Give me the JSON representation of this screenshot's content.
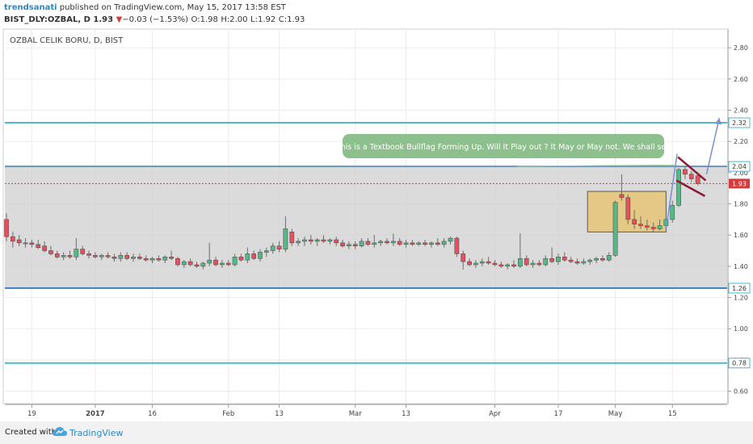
{
  "header": {
    "author": "trendsanati",
    "published": "published on TradingView.com, May 15, 2017 13:58 EST",
    "symbol": "BIST_DLY:OZBAL, D",
    "last": "1.93",
    "change_arrow": "▼",
    "change": "−0.03 (−1.53%)",
    "o_label": "O:",
    "o_val": "1.98",
    "h_label": "H:",
    "h_val": "2.00",
    "l_label": "L:",
    "l_val": "1.92",
    "c_label": "C:",
    "c_val": "1.93"
  },
  "chart_title": "OZBAL CELIK BORU, D, BIST",
  "annotation": "This is a Textbook Bullflag Forming Up. Will It Play out ? It May or May not. We shall see",
  "footer": {
    "created_with": "Created with",
    "brand": "TradingView"
  },
  "colors": {
    "up_candle": "#53b987",
    "down_candle": "#eb4d5c",
    "hline": "#4fb9c7",
    "range_fill": "#cfcfcf",
    "box_fill": "#e8c06a",
    "annotation_bg": "#8dc08d",
    "flag": "#8b1a3a",
    "arrow": "#7b8fd4",
    "price_line": "#d63b3b"
  },
  "chart_data": {
    "type": "candlestick",
    "title": "OZBAL CELIK BORU, D, BIST",
    "ylim": [
      0.52,
      2.92
    ],
    "y_ticks": [
      0.6,
      0.8,
      1.0,
      1.2,
      1.4,
      1.6,
      1.8,
      2.0,
      2.2,
      2.4,
      2.6,
      2.8
    ],
    "y_tick_labels": [
      "0.60",
      "0.80",
      "1.00",
      "1.20",
      "1.40",
      "1.60",
      "1.80",
      "2.00",
      "2.20",
      "2.40",
      "2.60",
      "2.80"
    ],
    "x_ticks": [
      {
        "label": "19",
        "bar": 4
      },
      {
        "label": "2017",
        "bar": 14
      },
      {
        "label": "16",
        "bar": 23
      },
      {
        "label": "Feb",
        "bar": 35
      },
      {
        "label": "13",
        "bar": 43
      },
      {
        "label": "Mar",
        "bar": 55
      },
      {
        "label": "13",
        "bar": 63
      },
      {
        "label": "Apr",
        "bar": 77
      },
      {
        "label": "17",
        "bar": 87
      },
      {
        "label": "May",
        "bar": 96
      },
      {
        "label": "15",
        "bar": 105
      }
    ],
    "bars_total": 112,
    "horizontal_lines": [
      {
        "value": 2.32,
        "label": "2.32"
      },
      {
        "value": 2.04,
        "label": "2.04"
      },
      {
        "value": 1.26,
        "label": "1.26"
      },
      {
        "value": 0.78,
        "label": "0.78"
      }
    ],
    "last_price": {
      "value": 1.93,
      "label": "1.93"
    },
    "range_zone": [
      1.26,
      2.04
    ],
    "consolidation_box": {
      "bar_from": 92,
      "bar_to": 104,
      "low": 1.62,
      "high": 1.88
    },
    "candles": [
      {
        "o": 1.7,
        "h": 1.74,
        "l": 1.56,
        "c": 1.59
      },
      {
        "o": 1.59,
        "h": 1.62,
        "l": 1.52,
        "c": 1.56
      },
      {
        "o": 1.57,
        "h": 1.6,
        "l": 1.53,
        "c": 1.55
      },
      {
        "o": 1.55,
        "h": 1.58,
        "l": 1.52,
        "c": 1.55
      },
      {
        "o": 1.55,
        "h": 1.57,
        "l": 1.52,
        "c": 1.54
      },
      {
        "o": 1.54,
        "h": 1.57,
        "l": 1.51,
        "c": 1.52
      },
      {
        "o": 1.53,
        "h": 1.56,
        "l": 1.49,
        "c": 1.5
      },
      {
        "o": 1.5,
        "h": 1.53,
        "l": 1.47,
        "c": 1.48
      },
      {
        "o": 1.48,
        "h": 1.5,
        "l": 1.45,
        "c": 1.46
      },
      {
        "o": 1.46,
        "h": 1.49,
        "l": 1.44,
        "c": 1.47
      },
      {
        "o": 1.47,
        "h": 1.5,
        "l": 1.45,
        "c": 1.46
      },
      {
        "o": 1.46,
        "h": 1.58,
        "l": 1.44,
        "c": 1.51
      },
      {
        "o": 1.51,
        "h": 1.53,
        "l": 1.47,
        "c": 1.48
      },
      {
        "o": 1.48,
        "h": 1.5,
        "l": 1.45,
        "c": 1.47
      },
      {
        "o": 1.47,
        "h": 1.49,
        "l": 1.45,
        "c": 1.46
      },
      {
        "o": 1.46,
        "h": 1.48,
        "l": 1.44,
        "c": 1.47
      },
      {
        "o": 1.47,
        "h": 1.49,
        "l": 1.45,
        "c": 1.46
      },
      {
        "o": 1.46,
        "h": 1.48,
        "l": 1.43,
        "c": 1.45
      },
      {
        "o": 1.45,
        "h": 1.49,
        "l": 1.43,
        "c": 1.47
      },
      {
        "o": 1.47,
        "h": 1.49,
        "l": 1.44,
        "c": 1.45
      },
      {
        "o": 1.45,
        "h": 1.48,
        "l": 1.43,
        "c": 1.46
      },
      {
        "o": 1.46,
        "h": 1.48,
        "l": 1.44,
        "c": 1.45
      },
      {
        "o": 1.45,
        "h": 1.47,
        "l": 1.43,
        "c": 1.44
      },
      {
        "o": 1.44,
        "h": 1.46,
        "l": 1.42,
        "c": 1.45
      },
      {
        "o": 1.45,
        "h": 1.47,
        "l": 1.43,
        "c": 1.44
      },
      {
        "o": 1.44,
        "h": 1.47,
        "l": 1.42,
        "c": 1.46
      },
      {
        "o": 1.46,
        "h": 1.5,
        "l": 1.44,
        "c": 1.45
      },
      {
        "o": 1.45,
        "h": 1.46,
        "l": 1.4,
        "c": 1.41
      },
      {
        "o": 1.41,
        "h": 1.44,
        "l": 1.39,
        "c": 1.43
      },
      {
        "o": 1.43,
        "h": 1.45,
        "l": 1.4,
        "c": 1.41
      },
      {
        "o": 1.41,
        "h": 1.43,
        "l": 1.39,
        "c": 1.4
      },
      {
        "o": 1.4,
        "h": 1.43,
        "l": 1.38,
        "c": 1.42
      },
      {
        "o": 1.42,
        "h": 1.55,
        "l": 1.4,
        "c": 1.44
      },
      {
        "o": 1.44,
        "h": 1.46,
        "l": 1.4,
        "c": 1.41
      },
      {
        "o": 1.41,
        "h": 1.44,
        "l": 1.39,
        "c": 1.42
      },
      {
        "o": 1.42,
        "h": 1.44,
        "l": 1.4,
        "c": 1.41
      },
      {
        "o": 1.41,
        "h": 1.48,
        "l": 1.4,
        "c": 1.46
      },
      {
        "o": 1.46,
        "h": 1.48,
        "l": 1.43,
        "c": 1.44
      },
      {
        "o": 1.44,
        "h": 1.52,
        "l": 1.42,
        "c": 1.48
      },
      {
        "o": 1.48,
        "h": 1.5,
        "l": 1.44,
        "c": 1.45
      },
      {
        "o": 1.45,
        "h": 1.51,
        "l": 1.43,
        "c": 1.49
      },
      {
        "o": 1.49,
        "h": 1.52,
        "l": 1.46,
        "c": 1.5
      },
      {
        "o": 1.5,
        "h": 1.55,
        "l": 1.48,
        "c": 1.53
      },
      {
        "o": 1.53,
        "h": 1.56,
        "l": 1.49,
        "c": 1.51
      },
      {
        "o": 1.51,
        "h": 1.72,
        "l": 1.49,
        "c": 1.64
      },
      {
        "o": 1.62,
        "h": 1.64,
        "l": 1.53,
        "c": 1.55
      },
      {
        "o": 1.55,
        "h": 1.58,
        "l": 1.53,
        "c": 1.56
      },
      {
        "o": 1.56,
        "h": 1.59,
        "l": 1.53,
        "c": 1.57
      },
      {
        "o": 1.57,
        "h": 1.6,
        "l": 1.54,
        "c": 1.56
      },
      {
        "o": 1.56,
        "h": 1.58,
        "l": 1.53,
        "c": 1.57
      },
      {
        "o": 1.57,
        "h": 1.6,
        "l": 1.55,
        "c": 1.56
      },
      {
        "o": 1.56,
        "h": 1.58,
        "l": 1.54,
        "c": 1.57
      },
      {
        "o": 1.57,
        "h": 1.59,
        "l": 1.53,
        "c": 1.55
      },
      {
        "o": 1.55,
        "h": 1.57,
        "l": 1.52,
        "c": 1.53
      },
      {
        "o": 1.53,
        "h": 1.56,
        "l": 1.51,
        "c": 1.54
      },
      {
        "o": 1.54,
        "h": 1.56,
        "l": 1.51,
        "c": 1.53
      },
      {
        "o": 1.53,
        "h": 1.58,
        "l": 1.52,
        "c": 1.56
      },
      {
        "o": 1.56,
        "h": 1.58,
        "l": 1.53,
        "c": 1.54
      },
      {
        "o": 1.54,
        "h": 1.6,
        "l": 1.52,
        "c": 1.55
      },
      {
        "o": 1.55,
        "h": 1.57,
        "l": 1.53,
        "c": 1.56
      },
      {
        "o": 1.56,
        "h": 1.58,
        "l": 1.54,
        "c": 1.55
      },
      {
        "o": 1.55,
        "h": 1.61,
        "l": 1.53,
        "c": 1.56
      },
      {
        "o": 1.56,
        "h": 1.58,
        "l": 1.53,
        "c": 1.54
      },
      {
        "o": 1.54,
        "h": 1.57,
        "l": 1.52,
        "c": 1.55
      },
      {
        "o": 1.55,
        "h": 1.57,
        "l": 1.53,
        "c": 1.54
      },
      {
        "o": 1.54,
        "h": 1.56,
        "l": 1.53,
        "c": 1.55
      },
      {
        "o": 1.55,
        "h": 1.57,
        "l": 1.53,
        "c": 1.54
      },
      {
        "o": 1.54,
        "h": 1.56,
        "l": 1.52,
        "c": 1.55
      },
      {
        "o": 1.55,
        "h": 1.58,
        "l": 1.53,
        "c": 1.54
      },
      {
        "o": 1.54,
        "h": 1.58,
        "l": 1.52,
        "c": 1.56
      },
      {
        "o": 1.56,
        "h": 1.59,
        "l": 1.54,
        "c": 1.58
      },
      {
        "o": 1.58,
        "h": 1.59,
        "l": 1.46,
        "c": 1.48
      },
      {
        "o": 1.48,
        "h": 1.5,
        "l": 1.38,
        "c": 1.43
      },
      {
        "o": 1.43,
        "h": 1.45,
        "l": 1.4,
        "c": 1.41
      },
      {
        "o": 1.41,
        "h": 1.44,
        "l": 1.39,
        "c": 1.42
      },
      {
        "o": 1.42,
        "h": 1.45,
        "l": 1.4,
        "c": 1.43
      },
      {
        "o": 1.43,
        "h": 1.46,
        "l": 1.41,
        "c": 1.42
      },
      {
        "o": 1.42,
        "h": 1.44,
        "l": 1.4,
        "c": 1.41
      },
      {
        "o": 1.41,
        "h": 1.43,
        "l": 1.39,
        "c": 1.4
      },
      {
        "o": 1.4,
        "h": 1.42,
        "l": 1.38,
        "c": 1.41
      },
      {
        "o": 1.41,
        "h": 1.44,
        "l": 1.39,
        "c": 1.4
      },
      {
        "o": 1.4,
        "h": 1.61,
        "l": 1.39,
        "c": 1.45
      },
      {
        "o": 1.45,
        "h": 1.47,
        "l": 1.4,
        "c": 1.41
      },
      {
        "o": 1.41,
        "h": 1.44,
        "l": 1.39,
        "c": 1.42
      },
      {
        "o": 1.42,
        "h": 1.44,
        "l": 1.4,
        "c": 1.41
      },
      {
        "o": 1.41,
        "h": 1.47,
        "l": 1.4,
        "c": 1.45
      },
      {
        "o": 1.45,
        "h": 1.52,
        "l": 1.42,
        "c": 1.43
      },
      {
        "o": 1.43,
        "h": 1.48,
        "l": 1.41,
        "c": 1.46
      },
      {
        "o": 1.46,
        "h": 1.49,
        "l": 1.43,
        "c": 1.44
      },
      {
        "o": 1.44,
        "h": 1.46,
        "l": 1.42,
        "c": 1.43
      },
      {
        "o": 1.43,
        "h": 1.45,
        "l": 1.41,
        "c": 1.42
      },
      {
        "o": 1.42,
        "h": 1.45,
        "l": 1.41,
        "c": 1.43
      },
      {
        "o": 1.43,
        "h": 1.45,
        "l": 1.41,
        "c": 1.44
      },
      {
        "o": 1.44,
        "h": 1.46,
        "l": 1.42,
        "c": 1.45
      },
      {
        "o": 1.45,
        "h": 1.47,
        "l": 1.43,
        "c": 1.44
      },
      {
        "o": 1.44,
        "h": 1.49,
        "l": 1.43,
        "c": 1.47
      },
      {
        "o": 1.47,
        "h": 1.82,
        "l": 1.46,
        "c": 1.81
      },
      {
        "o": 1.86,
        "h": 1.99,
        "l": 1.82,
        "c": 1.84
      },
      {
        "o": 1.84,
        "h": 1.86,
        "l": 1.67,
        "c": 1.7
      },
      {
        "o": 1.7,
        "h": 1.76,
        "l": 1.64,
        "c": 1.67
      },
      {
        "o": 1.67,
        "h": 1.72,
        "l": 1.64,
        "c": 1.66
      },
      {
        "o": 1.66,
        "h": 1.7,
        "l": 1.63,
        "c": 1.65
      },
      {
        "o": 1.65,
        "h": 1.68,
        "l": 1.62,
        "c": 1.64
      },
      {
        "o": 1.64,
        "h": 1.7,
        "l": 1.63,
        "c": 1.66
      },
      {
        "o": 1.66,
        "h": 1.72,
        "l": 1.64,
        "c": 1.7
      },
      {
        "o": 1.7,
        "h": 1.82,
        "l": 1.68,
        "c": 1.79
      },
      {
        "o": 1.79,
        "h": 2.03,
        "l": 1.78,
        "c": 2.02
      },
      {
        "o": 2.02,
        "h": 2.04,
        "l": 1.96,
        "c": 1.99
      },
      {
        "o": 1.99,
        "h": 2.01,
        "l": 1.94,
        "c": 1.96
      },
      {
        "o": 1.98,
        "h": 2.0,
        "l": 1.92,
        "c": 1.93
      }
    ]
  }
}
